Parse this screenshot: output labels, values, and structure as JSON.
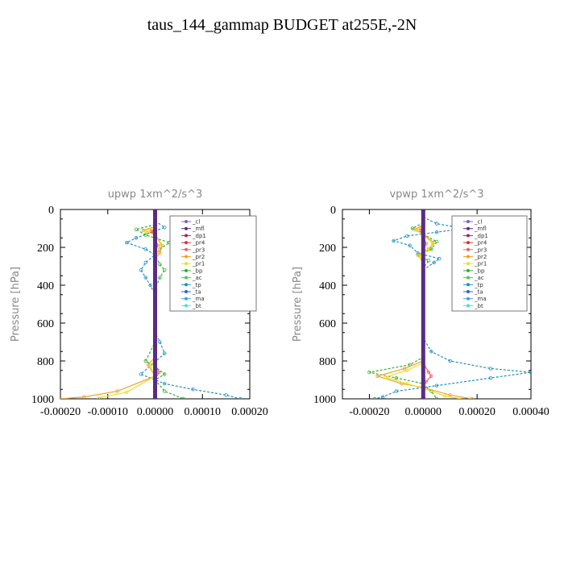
{
  "page": {
    "title": "taus_144_gammap  BUDGET at255E,-2N"
  },
  "legend_items": [
    {
      "label": "_cl",
      "color": "#8060c0"
    },
    {
      "label": "_mfl",
      "color": "#5a2c86"
    },
    {
      "label": "_dp1",
      "color": "#b02060"
    },
    {
      "label": "_pr4",
      "color": "#e03030"
    },
    {
      "label": "_pr3",
      "color": "#f06060"
    },
    {
      "label": "_pr2",
      "color": "#f0a030"
    },
    {
      "label": "_pr1",
      "color": "#e8e020"
    },
    {
      "label": "_bp",
      "color": "#30b030"
    },
    {
      "label": "_ac",
      "color": "#40d040"
    },
    {
      "label": "_tp",
      "color": "#2090c0"
    },
    {
      "label": "_ta",
      "color": "#3060d0"
    },
    {
      "label": "_ma",
      "color": "#40a0e0"
    },
    {
      "label": "_bt",
      "color": "#40e0e0"
    }
  ],
  "chart_data": [
    {
      "type": "line",
      "title": "upwp   1xm^2/s^3",
      "ylabel": "Pressure [hPa]",
      "xlim": [
        -0.0002,
        0.0002
      ],
      "ylim": [
        1000,
        0
      ],
      "xticks": [
        -0.0002,
        -0.0001,
        0.0,
        0.0001,
        0.0002
      ],
      "xtick_labels": [
        "-0.00020",
        "-0.00010",
        "0.00000",
        "0.00010",
        "0.00020"
      ],
      "yticks": [
        0,
        200,
        400,
        600,
        800,
        1000
      ],
      "ytick_labels": [
        "0",
        "200",
        "400",
        "600",
        "800",
        "1000"
      ],
      "series": [
        {
          "name": "_tp",
          "color": "#2090c0",
          "points": [
            [
              0,
              60
            ],
            [
              2e-05,
              95
            ],
            [
              -4e-05,
              150
            ],
            [
              -6e-05,
              175
            ],
            [
              -2e-05,
              210
            ],
            [
              0,
              240
            ],
            [
              -2e-05,
              280
            ],
            [
              -3e-05,
              320
            ],
            [
              -2e-05,
              360
            ],
            [
              -1e-05,
              400
            ],
            [
              0,
              450
            ],
            [
              0,
              650
            ],
            [
              1e-05,
              700
            ],
            [
              2e-05,
              760
            ],
            [
              -3e-05,
              870
            ],
            [
              2e-05,
              920
            ],
            [
              8e-05,
              950
            ],
            [
              0.00015,
              980
            ],
            [
              0.00018,
              1000
            ]
          ]
        },
        {
          "name": "_bp",
          "color": "#30b030",
          "points": [
            [
              0,
              80
            ],
            [
              -4e-05,
              105
            ],
            [
              -2e-05,
              135
            ],
            [
              3e-05,
              175
            ],
            [
              1e-05,
              210
            ],
            [
              0,
              240
            ],
            [
              1e-05,
              290
            ],
            [
              2e-05,
              320
            ],
            [
              1e-05,
              360
            ],
            [
              0,
              420
            ],
            [
              0,
              700
            ],
            [
              -2e-05,
              800
            ],
            [
              0,
              830
            ],
            [
              2e-05,
              870
            ],
            [
              0,
              900
            ],
            [
              2e-05,
              960
            ],
            [
              6e-05,
              1000
            ]
          ]
        },
        {
          "name": "_pr2",
          "color": "#f0a030",
          "points": [
            [
              0,
              90
            ],
            [
              -2.5e-05,
              110
            ],
            [
              0,
              130
            ],
            [
              1.5e-05,
              190
            ],
            [
              1e-05,
              230
            ],
            [
              0,
              260
            ],
            [
              0,
              780
            ],
            [
              -1.5e-05,
              820
            ],
            [
              0,
              880
            ],
            [
              -8e-05,
              960
            ],
            [
              -0.00015,
              990
            ],
            [
              -0.0002,
              1000
            ]
          ]
        },
        {
          "name": "_pr1",
          "color": "#e8e020",
          "points": [
            [
              0,
              95
            ],
            [
              -2e-05,
              115
            ],
            [
              0,
              135
            ],
            [
              1.2e-05,
              185
            ],
            [
              5e-06,
              225
            ],
            [
              0,
              250
            ],
            [
              0,
              790
            ],
            [
              -1e-05,
              830
            ],
            [
              0,
              880
            ],
            [
              -6e-05,
              965
            ],
            [
              -0.00012,
              995
            ]
          ]
        },
        {
          "name": "_pr3",
          "color": "#f06060",
          "points": [
            [
              0,
              100
            ],
            [
              -8e-06,
              115
            ],
            [
              0,
              140
            ],
            [
              5e-06,
              190
            ],
            [
              0,
              240
            ],
            [
              0,
              820
            ],
            [
              8e-06,
              860
            ],
            [
              0,
              900
            ],
            [
              0,
              1000
            ]
          ]
        },
        {
          "name": "_pr4",
          "color": "#e03030",
          "points": [
            [
              0,
              0
            ],
            [
              0,
              1000
            ]
          ]
        },
        {
          "name": "_dp1",
          "color": "#b02060",
          "points": [
            [
              0,
              0
            ],
            [
              0,
              1000
            ]
          ]
        },
        {
          "name": "_mfl",
          "color": "#5a2c86",
          "points": [
            [
              0,
              0
            ],
            [
              0,
              1000
            ]
          ]
        }
      ]
    },
    {
      "type": "line",
      "title": "vpwp   1xm^2/s^3",
      "ylabel": "Pressure [hPa]",
      "xlim": [
        -0.0003,
        0.0004
      ],
      "ylim": [
        1000,
        0
      ],
      "xticks": [
        -0.0002,
        0.0,
        0.0002,
        0.0004
      ],
      "xtick_labels": [
        "-0.00020",
        "0.00000",
        "0.00020",
        "0.00040"
      ],
      "yticks": [
        0,
        200,
        400,
        600,
        800,
        1000
      ],
      "ytick_labels": [
        "0",
        "200",
        "400",
        "600",
        "800",
        "1000"
      ],
      "series": [
        {
          "name": "_tp",
          "color": "#2090c0",
          "points": [
            [
              0,
              40
            ],
            [
              5e-05,
              75
            ],
            [
              0.00015,
              100
            ],
            [
              5e-05,
              120
            ],
            [
              -6e-05,
              140
            ],
            [
              -0.00011,
              165
            ],
            [
              -5e-05,
              190
            ],
            [
              -2e-05,
              230
            ],
            [
              6e-05,
              260
            ],
            [
              4e-05,
              280
            ],
            [
              0,
              320
            ],
            [
              0,
              680
            ],
            [
              3e-05,
              750
            ],
            [
              0.0001,
              800
            ],
            [
              0.00025,
              840
            ],
            [
              0.0004,
              860
            ],
            [
              0.00025,
              890
            ],
            [
              5e-05,
              930
            ],
            [
              -0.0001,
              960
            ],
            [
              -0.00015,
              990
            ],
            [
              -0.00018,
              1000
            ]
          ]
        },
        {
          "name": "_bp",
          "color": "#30b030",
          "points": [
            [
              0,
              70
            ],
            [
              -4e-05,
              100
            ],
            [
              0,
              130
            ],
            [
              5e-05,
              170
            ],
            [
              3e-05,
              210
            ],
            [
              -2e-05,
              240
            ],
            [
              2e-05,
              270
            ],
            [
              0,
              310
            ],
            [
              0,
              780
            ],
            [
              -5e-05,
              820
            ],
            [
              -0.0002,
              860
            ],
            [
              -0.0001,
              890
            ],
            [
              0,
              920
            ],
            [
              3e-05,
              960
            ],
            [
              5e-05,
              1000
            ]
          ]
        },
        {
          "name": "_pr2",
          "color": "#f0a030",
          "points": [
            [
              0,
              80
            ],
            [
              -3e-05,
              105
            ],
            [
              0,
              130
            ],
            [
              4e-05,
              175
            ],
            [
              2e-05,
              210
            ],
            [
              -2e-05,
              240
            ],
            [
              0,
              280
            ],
            [
              0,
              800
            ],
            [
              -7e-05,
              840
            ],
            [
              -0.00017,
              880
            ],
            [
              -8e-05,
              920
            ],
            [
              0,
              940
            ],
            [
              0.0001,
              980
            ],
            [
              0.00018,
              1000
            ]
          ]
        },
        {
          "name": "_pr1",
          "color": "#e8e020",
          "points": [
            [
              0,
              85
            ],
            [
              -2.5e-05,
              110
            ],
            [
              0,
              135
            ],
            [
              3.5e-05,
              180
            ],
            [
              1.5e-05,
              215
            ],
            [
              -1.5e-05,
              245
            ],
            [
              0,
              285
            ],
            [
              0,
              810
            ],
            [
              -6e-05,
              850
            ],
            [
              -0.00014,
              885
            ],
            [
              -6e-05,
              920
            ],
            [
              0,
              945
            ],
            [
              8e-05,
              985
            ],
            [
              0.00014,
              1000
            ]
          ]
        },
        {
          "name": "_pr3",
          "color": "#f06060",
          "points": [
            [
              0,
              90
            ],
            [
              -1e-05,
              110
            ],
            [
              0,
              140
            ],
            [
              1e-05,
              180
            ],
            [
              0,
              220
            ],
            [
              0,
              810
            ],
            [
              2e-05,
              860
            ],
            [
              3e-05,
              880
            ],
            [
              1e-05,
              910
            ],
            [
              0,
              940
            ],
            [
              0,
              1000
            ]
          ]
        },
        {
          "name": "_pr4",
          "color": "#e03030",
          "points": [
            [
              0,
              0
            ],
            [
              0,
              1000
            ]
          ]
        },
        {
          "name": "_dp1",
          "color": "#b02060",
          "points": [
            [
              0,
              0
            ],
            [
              0,
              1000
            ]
          ]
        },
        {
          "name": "_mfl",
          "color": "#5a2c86",
          "points": [
            [
              0,
              0
            ],
            [
              0,
              1000
            ]
          ]
        }
      ]
    }
  ]
}
